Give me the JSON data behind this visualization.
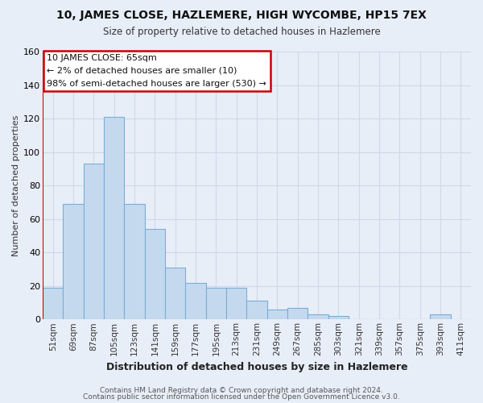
{
  "title": "10, JAMES CLOSE, HAZLEMERE, HIGH WYCOMBE, HP15 7EX",
  "subtitle": "Size of property relative to detached houses in Hazlemere",
  "xlabel": "Distribution of detached houses by size in Hazlemere",
  "ylabel": "Number of detached properties",
  "footer_line1": "Contains HM Land Registry data © Crown copyright and database right 2024.",
  "footer_line2": "Contains public sector information licensed under the Open Government Licence v3.0.",
  "bar_labels": [
    "51sqm",
    "69sqm",
    "87sqm",
    "105sqm",
    "123sqm",
    "141sqm",
    "159sqm",
    "177sqm",
    "195sqm",
    "213sqm",
    "231sqm",
    "249sqm",
    "267sqm",
    "285sqm",
    "303sqm",
    "321sqm",
    "339sqm",
    "357sqm",
    "375sqm",
    "393sqm",
    "411sqm"
  ],
  "bar_values": [
    19,
    69,
    93,
    121,
    69,
    54,
    31,
    22,
    19,
    19,
    11,
    6,
    7,
    3,
    2,
    0,
    0,
    0,
    0,
    3,
    0
  ],
  "bar_color": "#c5d9ee",
  "bar_edge_color": "#7aaed6",
  "annotation_title": "10 JAMES CLOSE: 65sqm",
  "annotation_line2": "← 2% of detached houses are smaller (10)",
  "annotation_line3": "98% of semi-detached houses are larger (530) →",
  "annotation_box_color": "#ffffff",
  "annotation_border_color": "#cc0000",
  "red_line_color": "#cc0000",
  "ylim": [
    0,
    160
  ],
  "yticks": [
    0,
    20,
    40,
    60,
    80,
    100,
    120,
    140,
    160
  ],
  "grid_color": "#d0d8e8",
  "background_color": "#e8eef8"
}
